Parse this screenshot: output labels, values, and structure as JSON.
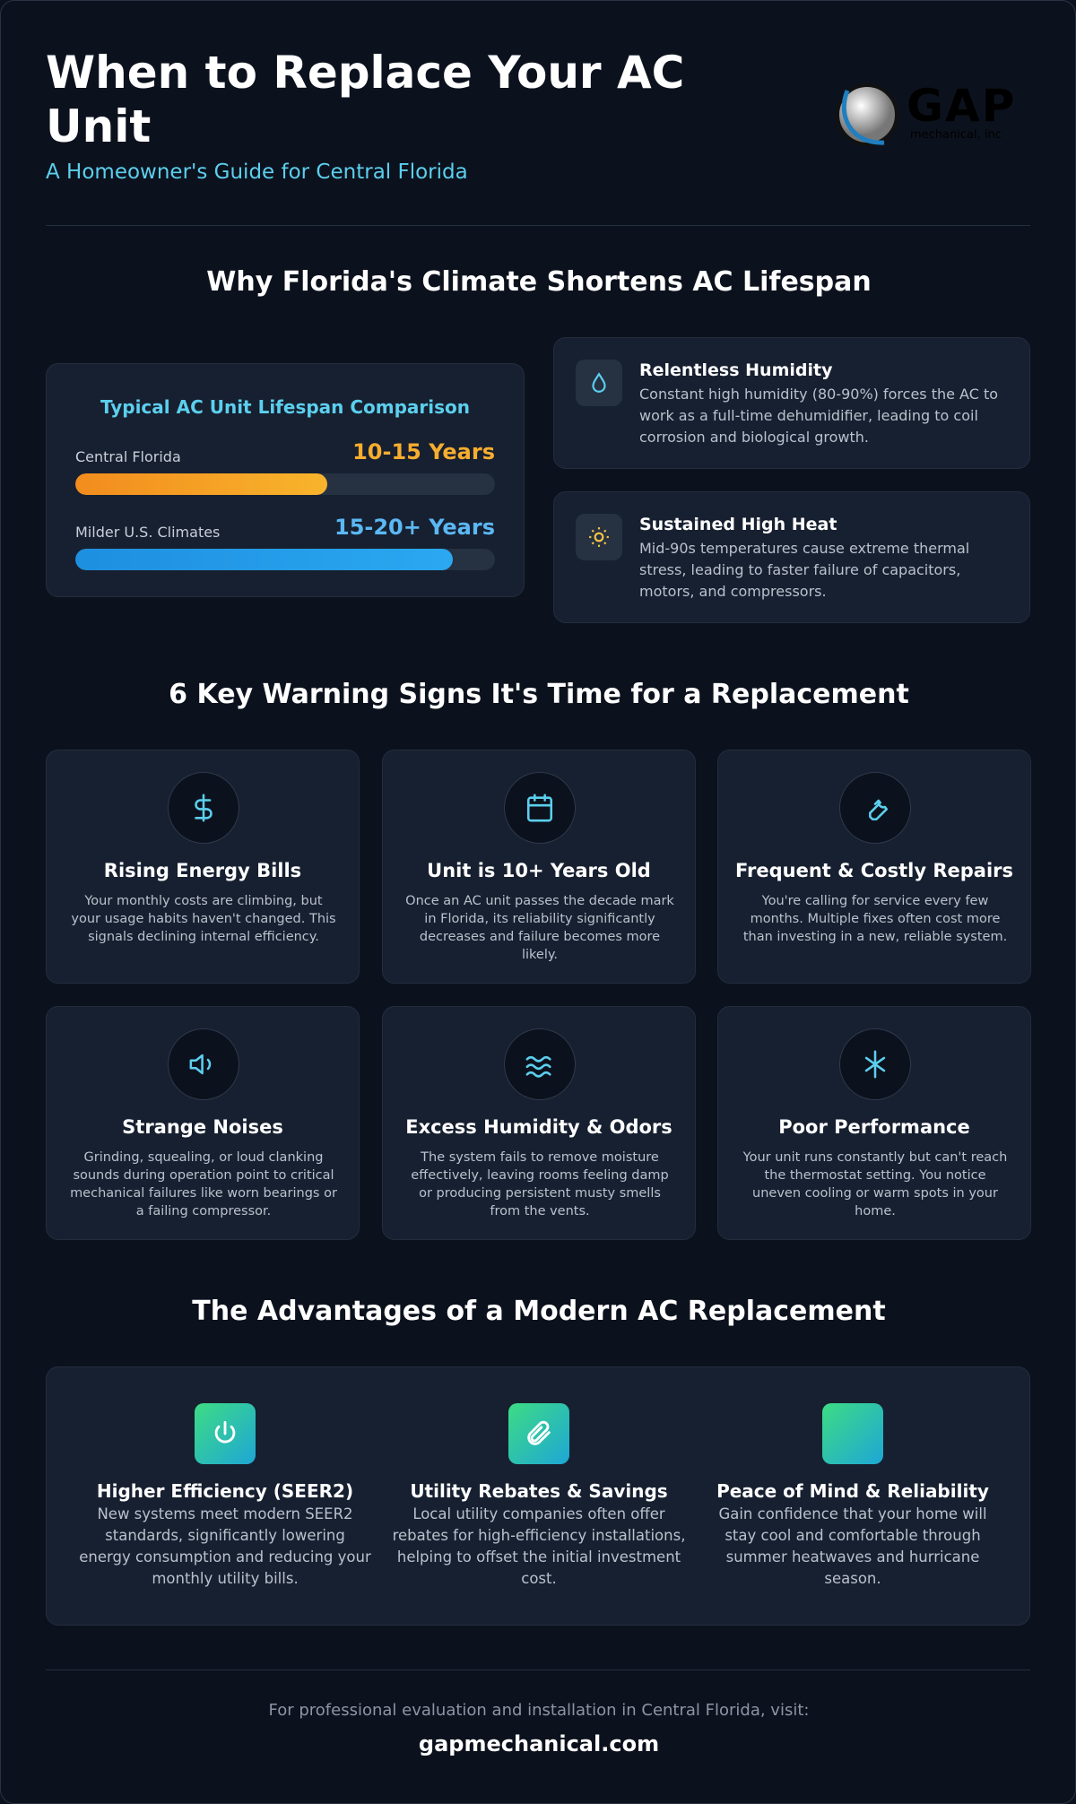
{
  "header": {
    "title": "When to Replace Your AC Unit",
    "subtitle": "A Homeowner's Guide for Central Florida",
    "logo": {
      "name": "GAP",
      "tagline": "mechanical, inc"
    }
  },
  "climate": {
    "heading": "Why Florida's Climate Shortens AC Lifespan",
    "comparison": {
      "title": "Typical AC Unit Lifespan Comparison",
      "rows": [
        {
          "label": "Central Florida",
          "value_label": "10-15 Years",
          "fill_percent": 60
        },
        {
          "label": "Milder U.S. Climates",
          "value_label": "15-20+ Years",
          "fill_percent": 90
        }
      ]
    },
    "factors": [
      {
        "title": "Relentless Humidity",
        "text": "Constant high humidity (80-90%) forces the AC to work as a full-time dehumidifier, leading to coil corrosion and biological growth."
      },
      {
        "title": "Sustained High Heat",
        "text": "Mid-90s temperatures cause extreme thermal stress, leading to faster failure of capacitors, motors, and compressors."
      }
    ]
  },
  "warning_signs": {
    "heading": "6 Key Warning Signs It's Time for a Replacement",
    "cards": [
      {
        "title": "Rising Energy Bills",
        "text": "Your monthly costs are climbing, but your usage habits haven't changed. This signals declining internal efficiency."
      },
      {
        "title": "Unit is 10+ Years Old",
        "text": "Once an AC unit passes the decade mark in Florida, its reliability significantly decreases and failure becomes more likely."
      },
      {
        "title": "Frequent & Costly Repairs",
        "text": "You're calling for service every few months. Multiple fixes often cost more than investing in a new, reliable system."
      },
      {
        "title": "Strange Noises",
        "text": "Grinding, squealing, or loud clanking sounds during operation point to critical mechanical failures like worn bearings or a failing compressor."
      },
      {
        "title": "Excess Humidity & Odors",
        "text": "The system fails to remove moisture effectively, leaving rooms feeling damp or producing persistent musty smells from the vents."
      },
      {
        "title": "Poor Performance",
        "text": "Your unit runs constantly but can't reach the thermostat setting. You notice uneven cooling or warm spots in your home."
      }
    ]
  },
  "advantages": {
    "heading": "The Advantages of a Modern AC Replacement",
    "items": [
      {
        "title": "Higher Efficiency (SEER2)",
        "text": "New systems meet modern SEER2 standards, significantly lowering energy consumption and reducing your monthly utility bills."
      },
      {
        "title": "Utility Rebates & Savings",
        "text": "Local utility companies often offer rebates for high-efficiency installations, helping to offset the initial investment cost."
      },
      {
        "title": "Peace of Mind & Reliability",
        "text": "Gain confidence that your home will stay cool and comfortable through summer heatwaves and hurricane season."
      }
    ]
  },
  "footer": {
    "text": "For professional evaluation and installation in Central Florida, visit:",
    "url": "gapmechanical.com"
  }
}
